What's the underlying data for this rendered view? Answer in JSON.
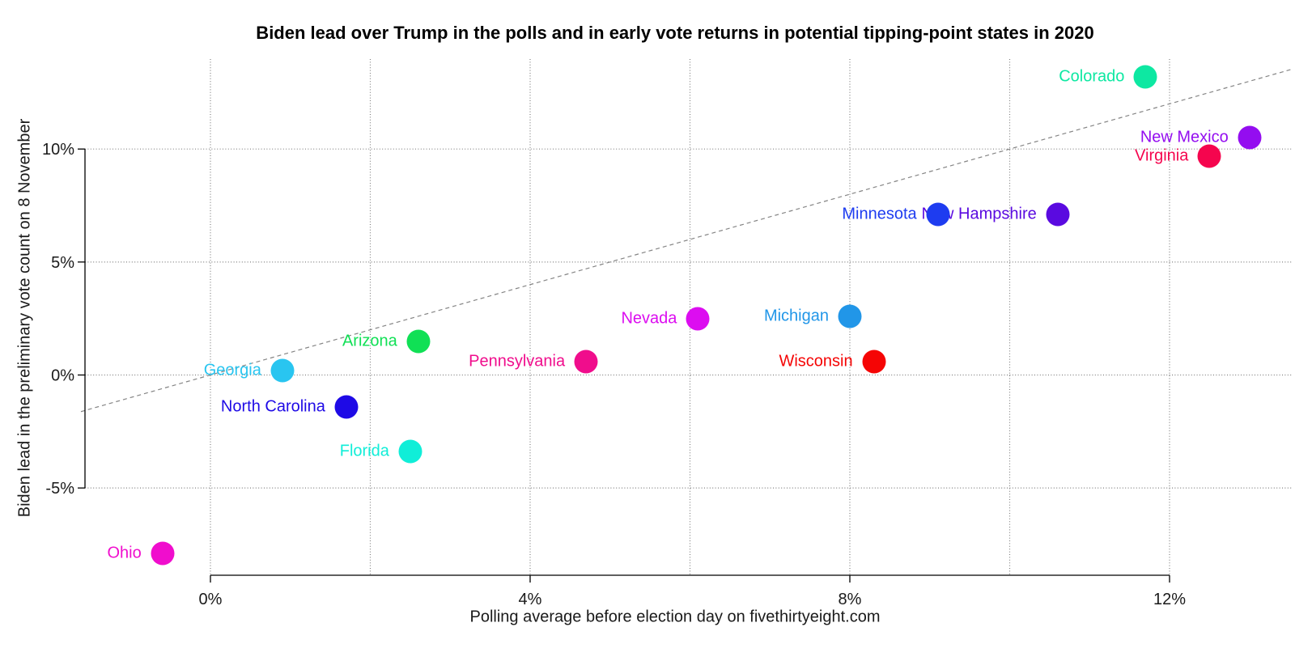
{
  "chart_data": {
    "type": "scatter",
    "title": "Biden lead over Trump in the polls and in early vote returns in potential tipping-point states in 2020",
    "xlabel": "Polling average before election day on fivethirtyeight.com",
    "ylabel": "Biden lead in the preliminary vote count on 8 November",
    "x_axis": {
      "ticks": [
        0,
        4,
        8,
        12
      ],
      "tick_labels": [
        "0%",
        "4%",
        "8%",
        "12%"
      ],
      "gridlines": [
        0,
        2,
        4,
        6,
        8,
        10,
        12
      ],
      "range": [
        -1.6,
        13.5
      ],
      "unit": "percent"
    },
    "y_axis": {
      "ticks": [
        -5,
        0,
        5,
        10
      ],
      "tick_labels": [
        "-5%",
        "0%",
        "5%",
        "10%"
      ],
      "gridlines": [
        -5,
        0,
        5,
        10
      ],
      "range": [
        -8.9,
        14.0
      ],
      "unit": "percent"
    },
    "grid": true,
    "legend": "none",
    "reference_line": {
      "style": "dashed",
      "equation": "y = x",
      "color": "#858585"
    },
    "gridline_color": "#808080",
    "axis_color": "#000000",
    "points": [
      {
        "state": "Colorado",
        "poll": 11.7,
        "vote": 13.2,
        "color": "#0de8a2"
      },
      {
        "state": "New Mexico",
        "poll": 13.0,
        "vote": 10.5,
        "color": "#940df0"
      },
      {
        "state": "Virginia",
        "poll": 12.5,
        "vote": 9.7,
        "color": "#f5054e"
      },
      {
        "state": "New Hampshire",
        "poll": 10.6,
        "vote": 7.1,
        "color": "#5a0ae0"
      },
      {
        "state": "Minnesota",
        "poll": 9.1,
        "vote": 7.1,
        "color": "#1e3cf0"
      },
      {
        "state": "Wisconsin",
        "poll": 8.3,
        "vote": 0.6,
        "color": "#f50505"
      },
      {
        "state": "Michigan",
        "poll": 8.0,
        "vote": 2.6,
        "color": "#2196e8"
      },
      {
        "state": "Nevada",
        "poll": 6.1,
        "vote": 2.5,
        "color": "#dc0df0"
      },
      {
        "state": "Pennsylvania",
        "poll": 4.7,
        "vote": 0.6,
        "color": "#f00d8c"
      },
      {
        "state": "Arizona",
        "poll": 2.6,
        "vote": 1.5,
        "color": "#10e055"
      },
      {
        "state": "Florida",
        "poll": 2.5,
        "vote": -3.4,
        "color": "#10eed8"
      },
      {
        "state": "North Carolina",
        "poll": 1.7,
        "vote": -1.4,
        "color": "#1e0ae6"
      },
      {
        "state": "Georgia",
        "poll": 0.9,
        "vote": 0.2,
        "color": "#29c5f0"
      },
      {
        "state": "Ohio",
        "poll": -0.6,
        "vote": -7.9,
        "color": "#f00dcd"
      }
    ]
  }
}
